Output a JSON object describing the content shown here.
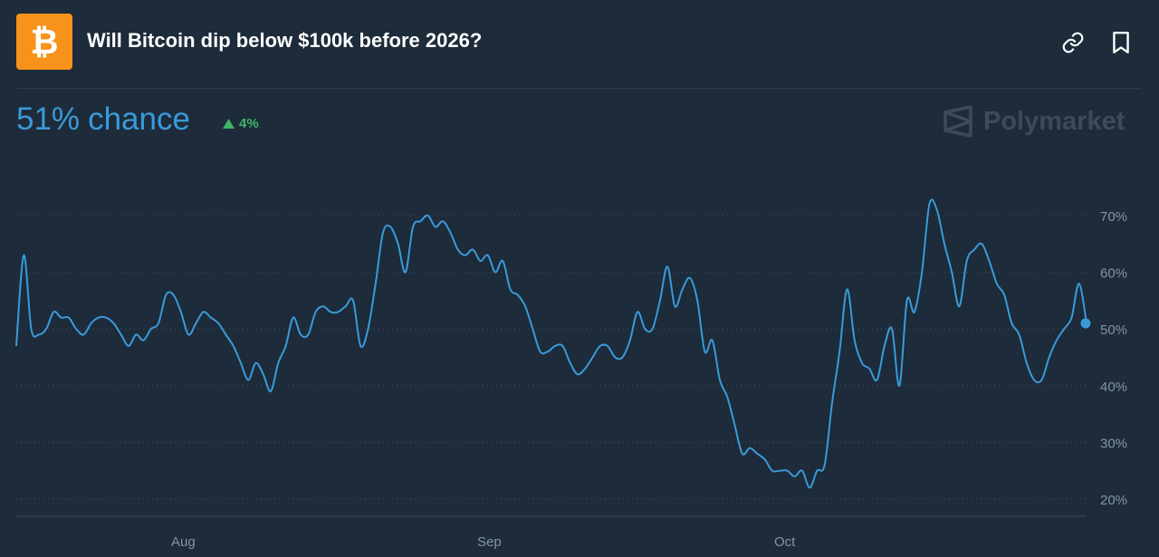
{
  "header": {
    "title": "Will Bitcoin dip below $100k before 2026?",
    "logo_icon": "bitcoin-icon",
    "actions": [
      {
        "name": "copy-link",
        "icon": "link-icon"
      },
      {
        "name": "bookmark",
        "icon": "bookmark-icon"
      }
    ]
  },
  "summary": {
    "chance_value": "51%",
    "chance_suffix": "chance",
    "change_text": "4%",
    "change_direction": "up",
    "change_icon": "triangle-up-icon"
  },
  "brand": {
    "name": "Polymarket",
    "icon": "polymarket-logo-icon"
  },
  "colors": {
    "background": "#1d2b3a",
    "accent": "#3a9ad9",
    "up": "#3db468",
    "bitcoin": "#f7931a",
    "muted": "#8594a4"
  },
  "chart_data": {
    "type": "line",
    "title": "",
    "xlabel": "",
    "ylabel": "",
    "x_ticks": [
      "Aug",
      "Sep",
      "Oct"
    ],
    "y_ticks": [
      "70%",
      "60%",
      "50%",
      "40%",
      "30%",
      "20%"
    ],
    "y_tick_values": [
      70,
      60,
      50,
      40,
      30,
      20
    ],
    "ylim": [
      20,
      70
    ],
    "grid": "horizontal dotted",
    "axis_position": "right",
    "series": [
      {
        "values": [
          47,
          63,
          50,
          49,
          50,
          53,
          52,
          52,
          50,
          49,
          51,
          52,
          52,
          51,
          49,
          47,
          49,
          48,
          50,
          51,
          56,
          56,
          53,
          49,
          51,
          53,
          52,
          51,
          49,
          47,
          44,
          41,
          44,
          42,
          39,
          44,
          47,
          52,
          49,
          49,
          53,
          54,
          53,
          53,
          54,
          55,
          47,
          50,
          58,
          67,
          68,
          65,
          60,
          68,
          69,
          70,
          68,
          69,
          67,
          64,
          63,
          64,
          62,
          63,
          60,
          62,
          57,
          56,
          54,
          50,
          46,
          46,
          47,
          47,
          44,
          42,
          43,
          45,
          47,
          47,
          45,
          45,
          48,
          53,
          50,
          50,
          55,
          61,
          54,
          57,
          59,
          55,
          46,
          48,
          41,
          38,
          33,
          28,
          29,
          28,
          27,
          25,
          25,
          25,
          24,
          25,
          22,
          25,
          26,
          37,
          46,
          57,
          48,
          44,
          43,
          41,
          47,
          50,
          40,
          55,
          53,
          60,
          72,
          71,
          65,
          60,
          54,
          62,
          64,
          65,
          62,
          58,
          56,
          51,
          49,
          44,
          41,
          41,
          45,
          48,
          50,
          52,
          58,
          51
        ]
      }
    ],
    "end_marker_value": 51
  }
}
